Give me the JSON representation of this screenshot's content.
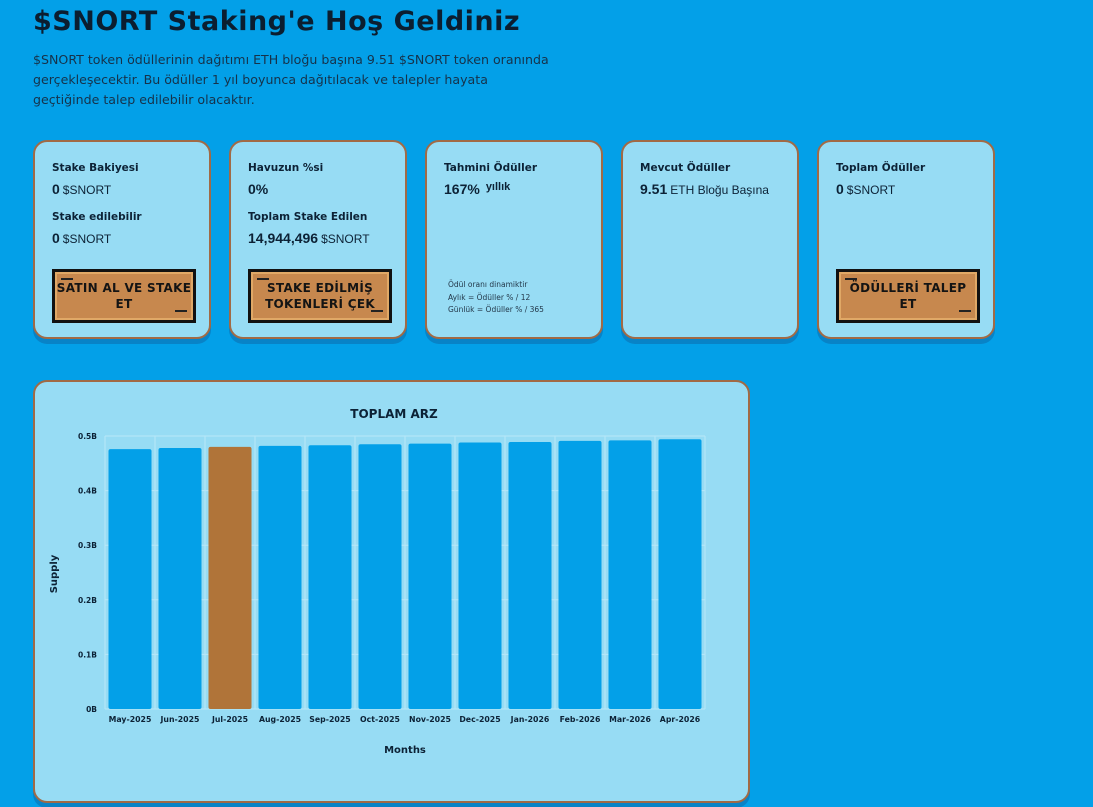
{
  "header": {
    "title": "$SNORT Staking'e Hoş Geldiniz",
    "intro": "$SNORT token ödüllerinin dağıtımı ETH bloğu başına 9.51 $SNORT token oranında gerçekleşecektir. Bu ödüller 1 yıl boyunca dağıtılacak ve talepler hayata geçtiğinde talep edilebilir olacaktır."
  },
  "cards": {
    "stake_balance": {
      "label": "Stake Bakiyesi",
      "value": "0",
      "unit": "$SNORT",
      "stakeable_label": "Stake edilebilir",
      "stakeable_value": "0",
      "stakeable_unit": "$SNORT",
      "button": "SATIN AL VE STAKE ET"
    },
    "pool": {
      "label": "Havuzun %si",
      "value": "0%",
      "total_label": "Toplam Stake Edilen",
      "total_value": "14,944,496",
      "total_unit": "$SNORT",
      "button": "STAKE EDİLMİŞ TOKENLERİ ÇEK"
    },
    "estimated": {
      "label": "Tahmini Ödüller",
      "value": "167%",
      "suffix": "yıllık",
      "note_line1": "Ödül oranı dinamiktir",
      "note_line2": "Aylık = Ödüller % / 12",
      "note_line3": "Günlük = Ödüller % / 365"
    },
    "current": {
      "label": "Mevcut Ödüller",
      "value": "9.51",
      "unit": "ETH Bloğu Başına"
    },
    "total_rewards": {
      "label": "Toplam Ödüller",
      "value": "0",
      "unit": "$SNORT",
      "button": "ÖDÜLLERİ TALEP ET"
    }
  },
  "chart_data": {
    "type": "bar",
    "title": "TOPLAM ARZ",
    "xlabel": "Months",
    "ylabel": "Supply",
    "categories": [
      "May-2025",
      "Jun-2025",
      "Jul-2025",
      "Aug-2025",
      "Sep-2025",
      "Oct-2025",
      "Nov-2025",
      "Dec-2025",
      "Jan-2026",
      "Feb-2026",
      "Mar-2026",
      "Apr-2026"
    ],
    "values": [
      0.476,
      0.478,
      0.48,
      0.482,
      0.483,
      0.485,
      0.486,
      0.488,
      0.489,
      0.491,
      0.492,
      0.494
    ],
    "value_unit": "B",
    "ylim": [
      0,
      0.5
    ],
    "yticks": [
      0,
      0.1,
      0.2,
      0.3,
      0.4,
      0.5
    ],
    "ytick_labels": [
      "0B",
      "0.1B",
      "0.2B",
      "0.3B",
      "0.4B",
      "0.5B"
    ],
    "highlight_index": 2,
    "colors": {
      "bar": "#03a0e8",
      "highlight": "#b07439",
      "grid": "#b9e7f8"
    },
    "grid": true
  }
}
